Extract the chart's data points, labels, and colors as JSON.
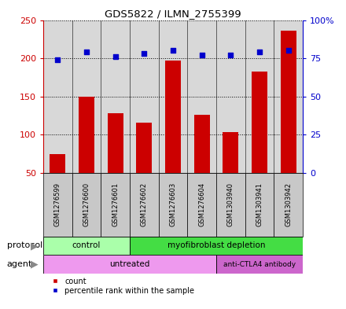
{
  "title": "GDS5822 / ILMN_2755399",
  "samples": [
    "GSM1276599",
    "GSM1276600",
    "GSM1276601",
    "GSM1276602",
    "GSM1276603",
    "GSM1276604",
    "GSM1303940",
    "GSM1303941",
    "GSM1303942"
  ],
  "counts": [
    75,
    150,
    128,
    116,
    197,
    126,
    104,
    183,
    236
  ],
  "percentile_ranks": [
    74,
    79,
    76,
    78,
    80,
    77,
    77,
    79,
    80
  ],
  "ylim_left": [
    50,
    250
  ],
  "ylim_right": [
    0,
    100
  ],
  "yticks_left": [
    50,
    100,
    150,
    200,
    250
  ],
  "ytick_labels_left": [
    "50",
    "100",
    "150",
    "200",
    "250"
  ],
  "yticks_right": [
    0,
    25,
    50,
    75,
    100
  ],
  "ytick_labels_right": [
    "0",
    "25",
    "50",
    "75",
    "100%"
  ],
  "bar_color": "#cc0000",
  "scatter_color": "#0000cc",
  "protocol_groups": [
    {
      "label": "control",
      "start": 0,
      "end": 3,
      "color": "#aaffaa"
    },
    {
      "label": "myofibroblast depletion",
      "start": 3,
      "end": 9,
      "color": "#44dd44"
    }
  ],
  "agent_groups": [
    {
      "label": "untreated",
      "start": 0,
      "end": 6,
      "color": "#ee99ee"
    },
    {
      "label": "anti-CTLA4 antibody",
      "start": 6,
      "end": 9,
      "color": "#cc66cc"
    }
  ],
  "legend_count_color": "#cc0000",
  "legend_percentile_color": "#0000cc",
  "plot_bg_color": "#d8d8d8",
  "xtick_bg_color": "#c8c8c8",
  "label_protocol": "protocol",
  "label_arrow_color": "#888888"
}
